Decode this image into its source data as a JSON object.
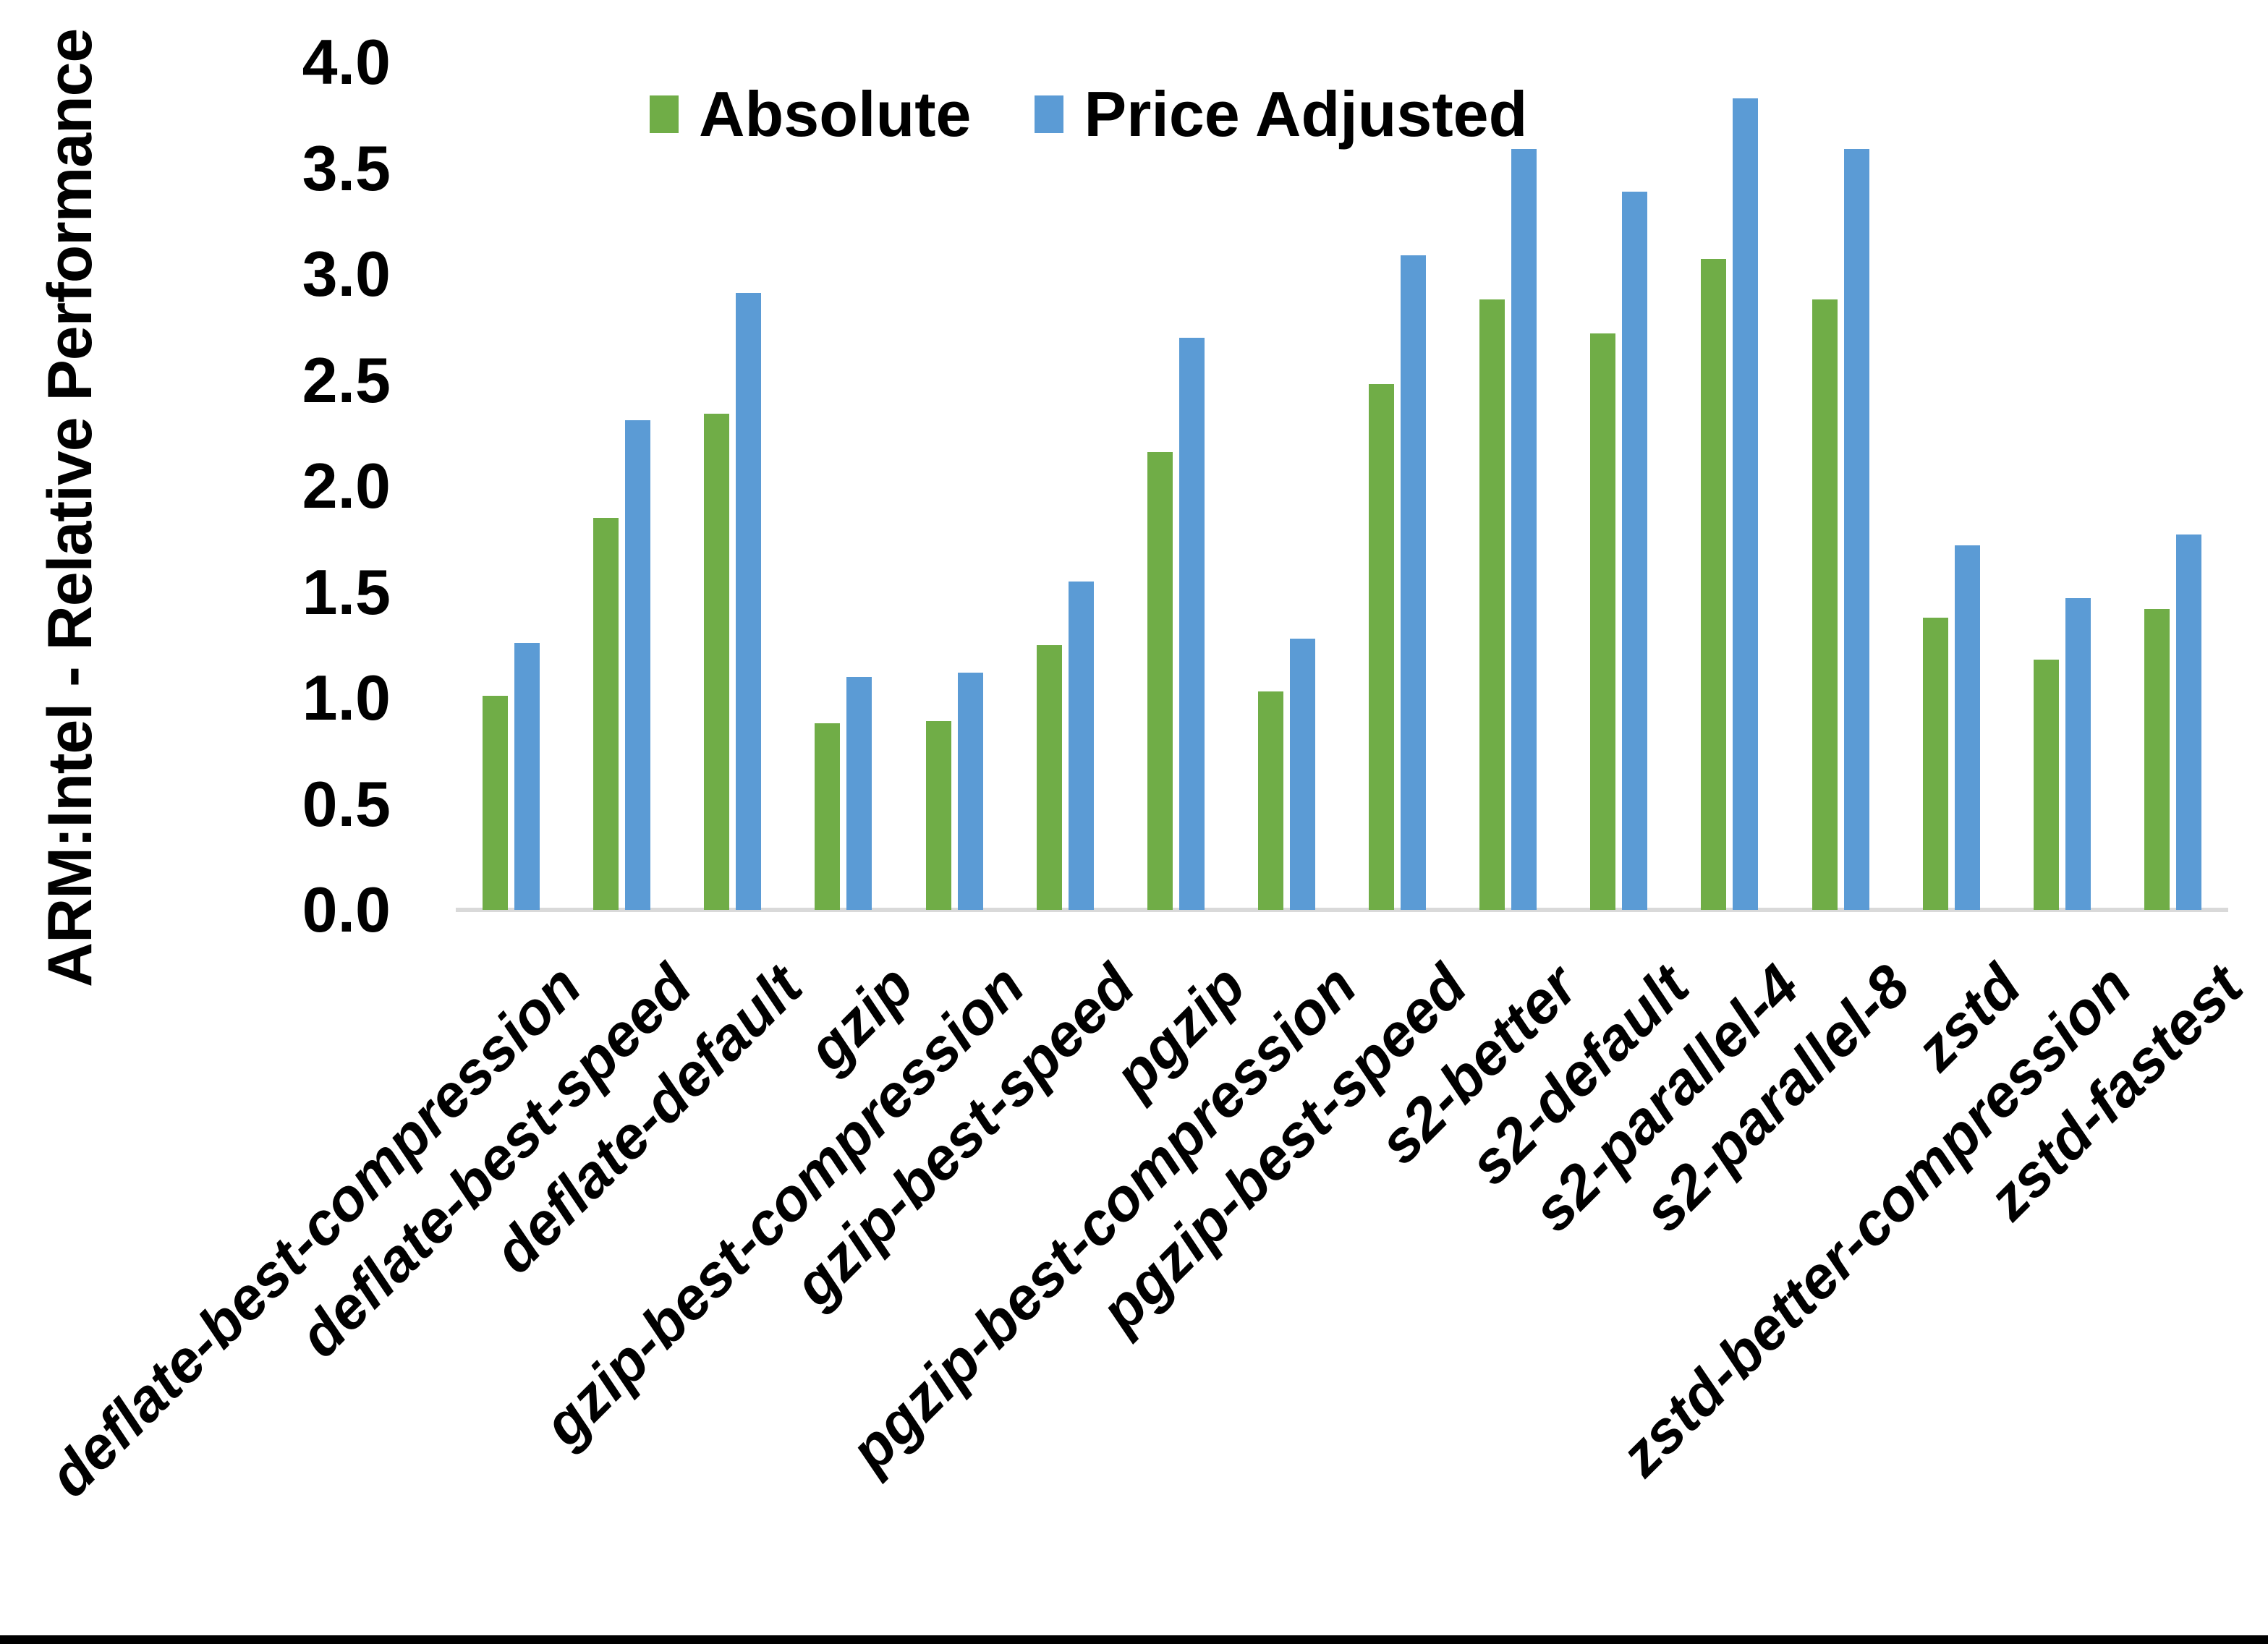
{
  "figure": {
    "background": "#ffffff",
    "bottom_border_color": "#000000",
    "text_color": "#000000"
  },
  "chart_data": {
    "type": "bar",
    "title": "",
    "xlabel": "",
    "ylabel": "ARM:Intel - Relative Performance",
    "ylim": [
      0.0,
      4.0
    ],
    "ytick_step": 0.5,
    "ytick_format_decimals": 1,
    "grid": false,
    "legend_position": "top-center",
    "axis_line_color": "#D9D9D9",
    "categories": [
      "deflate-best-compression",
      "deflate-best-speed",
      "deflate-default",
      "gzip",
      "gzip-best-compression",
      "gzip-best-speed",
      "pgzip",
      "pgzip-best-compression",
      "pgzip-best-speed",
      "s2-better",
      "s2-default",
      "s2-parallel-4",
      "s2-parallel-8",
      "zstd",
      "zstd-better-compression",
      "zstd-fastest"
    ],
    "series": [
      {
        "name": "Absolute",
        "color": "#70AD47",
        "values": [
          1.01,
          1.85,
          2.34,
          0.88,
          0.89,
          1.25,
          2.16,
          1.03,
          2.48,
          2.88,
          2.72,
          3.07,
          2.88,
          1.38,
          1.18,
          1.42
        ]
      },
      {
        "name": "Price Adjusted",
        "color": "#5B9BD5",
        "values": [
          1.26,
          2.31,
          2.91,
          1.1,
          1.12,
          1.55,
          2.7,
          1.28,
          3.09,
          3.59,
          3.39,
          3.83,
          3.59,
          1.72,
          1.47,
          1.77
        ]
      }
    ]
  }
}
